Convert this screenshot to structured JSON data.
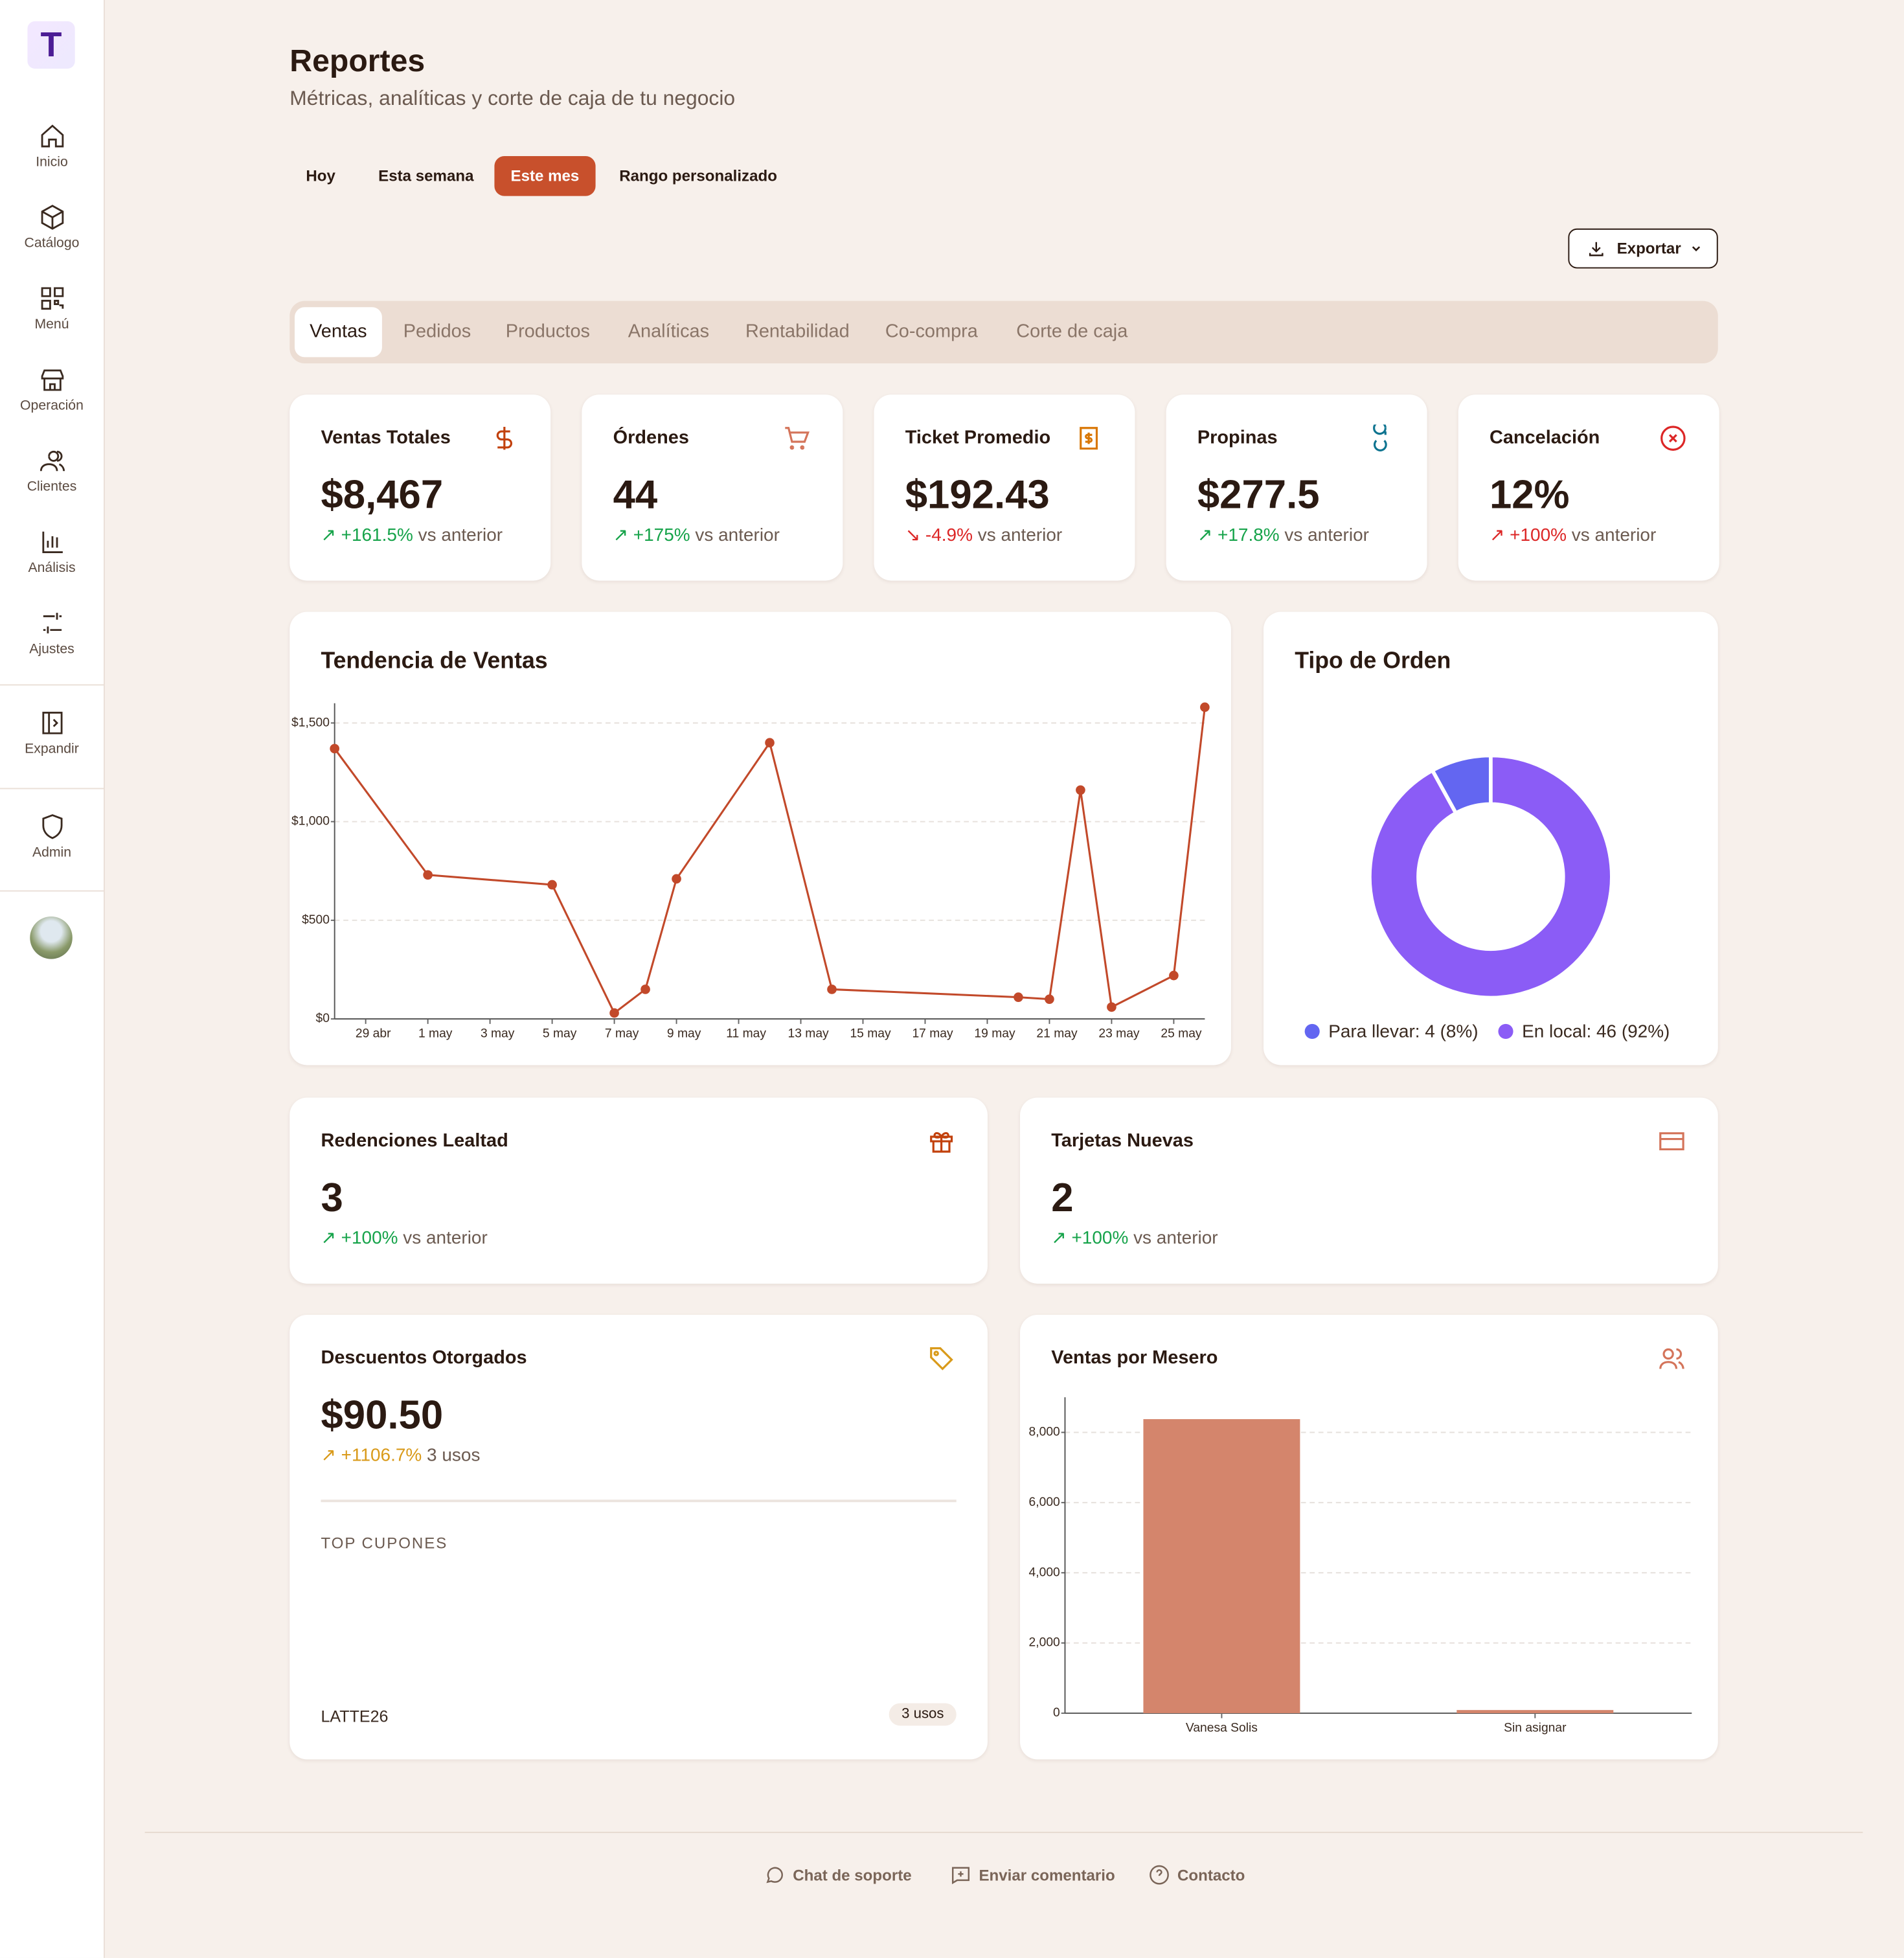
{
  "app": {
    "logo": "T"
  },
  "sidebar": [
    "Inicio",
    "Catálogo",
    "Menú",
    "Operación",
    "Clientes",
    "Análisis",
    "Ajustes"
  ],
  "sidebar_extra": [
    "Expandir",
    "Admin"
  ],
  "header": {
    "title": "Reportes",
    "subtitle": "Métricas, analíticas y corte de caja de tu negocio"
  },
  "periods": [
    "Hoy",
    "Esta semana",
    "Este mes",
    "Rango personalizado"
  ],
  "active_period": 2,
  "export": "Exportar",
  "tabs": [
    "Ventas",
    "Pedidos",
    "Productos",
    "Analíticas",
    "Rentabilidad",
    "Co-compra",
    "Corte de caja"
  ],
  "active_tab": 0,
  "kpis": [
    {
      "label": "Ventas Totales",
      "value": "$8,467",
      "change": "+161.5%",
      "suffix": "vs anterior",
      "tone": "good",
      "trend": "up",
      "icon_color": "#c2410c"
    },
    {
      "label": "Órdenes",
      "value": "44",
      "change": "+175%",
      "suffix": "vs anterior",
      "tone": "good",
      "trend": "up",
      "icon_color": "#d4745a"
    },
    {
      "label": "Ticket Promedio",
      "value": "$192.43",
      "change": "-4.9%",
      "suffix": "vs anterior",
      "tone": "bad",
      "trend": "down",
      "icon_color": "#d97706"
    },
    {
      "label": "Propinas",
      "value": "$277.5",
      "change": "+17.8%",
      "suffix": "vs anterior",
      "tone": "good",
      "trend": "up",
      "icon_color": "#0e7490"
    },
    {
      "label": "Cancelación",
      "value": "12%",
      "change": "+100%",
      "suffix": "vs anterior",
      "tone": "bad",
      "trend": "up",
      "icon_color": "#dc2626"
    }
  ],
  "cards": [
    {
      "label": "Redenciones Lealtad",
      "value": "3",
      "change": "+100%",
      "suffix": "vs anterior",
      "tone": "good",
      "icon_color": "#c2410c"
    },
    {
      "label": "Tarjetas Nuevas",
      "value": "2",
      "change": "+100%",
      "suffix": "vs anterior",
      "tone": "good",
      "icon_color": "#d4745a"
    }
  ],
  "discounts": {
    "label": "Descuentos Otorgados",
    "value": "$90.50",
    "change": "+1106.7%",
    "suffix": "3 usos",
    "tone": "warn",
    "section": "TOP CUPONES",
    "coupons": [
      {
        "code": "LATTE26",
        "uses": "3 usos"
      }
    ]
  },
  "chart_data": [
    {
      "type": "line",
      "title": "Tendencia de Ventas",
      "color": "#c2492a",
      "x": [
        0,
        3,
        7,
        9,
        10,
        11,
        14,
        16,
        22,
        23,
        24,
        25,
        27,
        28
      ],
      "values": [
        1370,
        730,
        680,
        30,
        150,
        710,
        1400,
        150,
        110,
        100,
        1160,
        60,
        220,
        1580
      ],
      "xlim": [
        0,
        28
      ],
      "xticks": [
        {
          "value": 1,
          "label": "29 abr"
        },
        {
          "value": 3,
          "label": "1 may"
        },
        {
          "value": 5,
          "label": "3 may"
        },
        {
          "value": 7,
          "label": "5 may"
        },
        {
          "value": 9,
          "label": "7 may"
        },
        {
          "value": 11,
          "label": "9 may"
        },
        {
          "value": 13,
          "label": "11 may"
        },
        {
          "value": 15,
          "label": "13 may"
        },
        {
          "value": 17,
          "label": "15 may"
        },
        {
          "value": 19,
          "label": "17 may"
        },
        {
          "value": 21,
          "label": "19 may"
        },
        {
          "value": 23,
          "label": "21 may"
        },
        {
          "value": 25,
          "label": "23 may"
        },
        {
          "value": 27,
          "label": "25 may"
        }
      ],
      "ylim": [
        0,
        1600
      ],
      "yticks": [
        {
          "value": 0,
          "label": "$0"
        },
        {
          "value": 500,
          "label": "$500"
        },
        {
          "value": 1000,
          "label": "$1,000"
        },
        {
          "value": 1500,
          "label": "$1,500"
        }
      ],
      "grid": true
    },
    {
      "type": "pie",
      "title": "Tipo de Orden",
      "categories": [
        "Para llevar: 4 (8%)",
        "En local: 46 (92%)"
      ],
      "values": [
        4,
        46
      ],
      "colors": [
        "#6366f1",
        "#8b5cf6"
      ],
      "donut": true
    },
    {
      "type": "bar",
      "title": "Ventas por Mesero",
      "categories": [
        "Vanesa Solis",
        "Sin asignar"
      ],
      "values": [
        8377,
        90
      ],
      "color": "#d4856c",
      "ylim": [
        0,
        9000
      ],
      "yticks": [
        0,
        {
          "value": 2000,
          "label": "2,000"
        },
        {
          "value": 4000,
          "label": "4,000"
        },
        {
          "value": 6000,
          "label": "6,000"
        },
        {
          "value": 8000,
          "label": "8,000"
        }
      ],
      "grid": true
    }
  ],
  "footer": [
    "Chat de soporte",
    "Enviar comentario",
    "Contacto"
  ]
}
